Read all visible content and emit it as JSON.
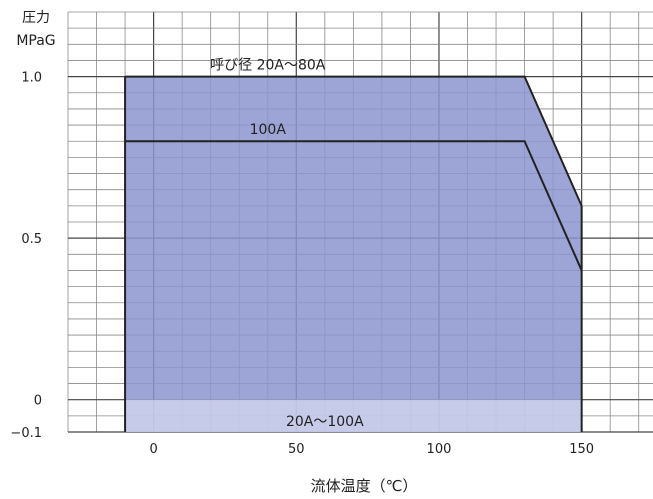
{
  "chart_data": {
    "type": "area",
    "y_title_lines": [
      "圧力",
      "MPaG"
    ],
    "xlabel": "流体温度（℃）",
    "xlim": [
      -30,
      175
    ],
    "ylim": [
      -0.1,
      1.2
    ],
    "x_ticks": [
      0,
      50,
      100,
      150
    ],
    "y_ticks": [
      1.0,
      0.5,
      0,
      -0.1
    ],
    "y_tick_labels": [
      "1.0",
      "0.5",
      "0",
      "−0.1"
    ],
    "grid_x_step": 10,
    "grid_y_step": 0.05,
    "grid": true,
    "series": [
      {
        "name": "呼び径 20A～80A",
        "points": [
          [
            -10,
            1.0
          ],
          [
            130,
            1.0
          ],
          [
            150,
            0.6
          ]
        ]
      },
      {
        "name": "100A",
        "points": [
          [
            -10,
            0.8
          ],
          [
            130,
            0.8
          ],
          [
            150,
            0.4
          ]
        ]
      }
    ],
    "lower_band": {
      "label": "20A～100A",
      "from": -0.1,
      "to": 0,
      "x_range": [
        -10,
        150
      ]
    },
    "colors": {
      "fill": "#8c94cf",
      "lower_band_fill": "#c3c8e8",
      "line": "#222222",
      "grid": "#8a8a8a",
      "grid_major": "#444444"
    }
  }
}
